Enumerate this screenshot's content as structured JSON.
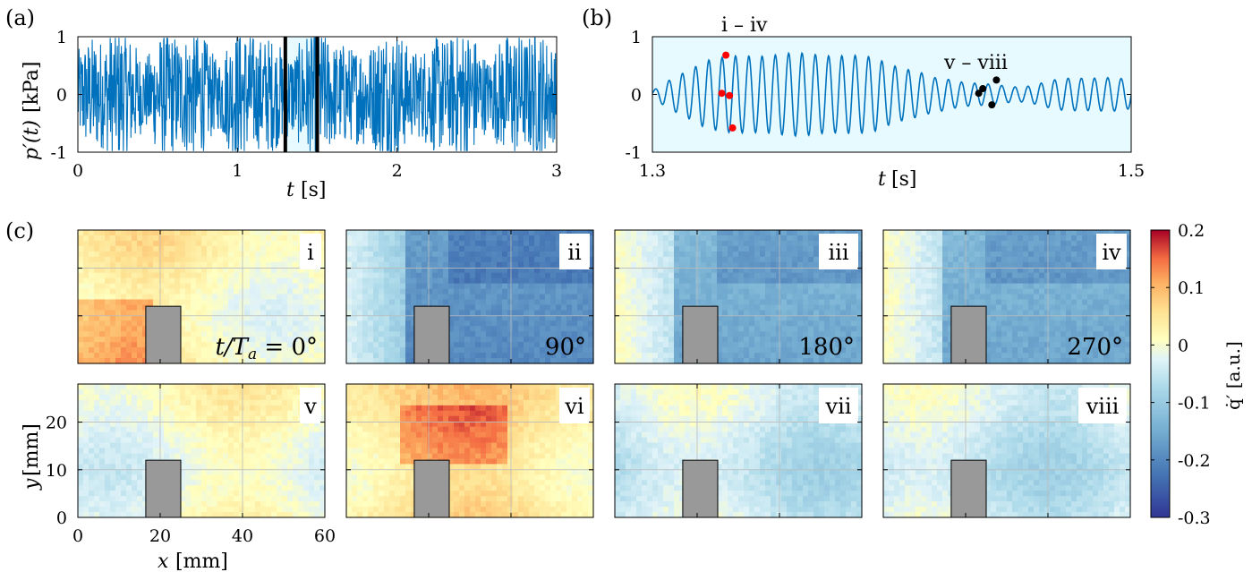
{
  "panel_labels": {
    "a": "(a)",
    "b": "(b)",
    "c": "(c)"
  },
  "chart_data": [
    {
      "id": "a",
      "type": "line",
      "xlabel_var": "t",
      "xlabel_unit": "[s]",
      "ylabel_var": "p′(t)",
      "ylabel_unit": "[kPa]",
      "xlim": [
        0,
        3
      ],
      "ylim": [
        -1,
        1
      ],
      "xticks": [
        "0",
        "1",
        "2",
        "3"
      ],
      "yticks": [
        "-1",
        "0",
        "1"
      ],
      "line_color": "#0072BD",
      "highlight_window": [
        1.3,
        1.5
      ],
      "highlight_color": "#E6FAFF"
    },
    {
      "id": "b",
      "type": "line",
      "xlabel_var": "t",
      "xlabel_unit": "[s]",
      "xlim": [
        1.3,
        1.5
      ],
      "ylim": [
        -1,
        1
      ],
      "xticks": [
        "1.3",
        "1.5"
      ],
      "yticks": [
        "-1",
        "0",
        "1"
      ],
      "background": "#E6FAFF",
      "line_color": "#0072BD",
      "group_labels": [
        "i – iv",
        "v – viii"
      ],
      "markers_red": [
        {
          "x": 1.329,
          "y": 0.02
        },
        {
          "x": 1.3307,
          "y": 0.68
        },
        {
          "x": 1.3322,
          "y": -0.02
        },
        {
          "x": 1.3335,
          "y": -0.58
        }
      ],
      "markers_black": [
        {
          "x": 1.4363,
          "y": 0.02
        },
        {
          "x": 1.438,
          "y": 0.1
        },
        {
          "x": 1.4418,
          "y": -0.18
        },
        {
          "x": 1.4437,
          "y": 0.25
        }
      ]
    },
    {
      "id": "c",
      "type": "heatmap",
      "xlabel_var": "x",
      "xlabel_unit": "[mm]",
      "ylabel_var": "y",
      "ylabel_unit": "[mm]",
      "xlim": [
        0,
        60
      ],
      "ylim": [
        0,
        28
      ],
      "xticks": [
        "0",
        "20",
        "40",
        "60"
      ],
      "yticks": [
        "0",
        "10",
        "20"
      ],
      "colorbar_label": "q̇′ [a.u.]",
      "colorbar_range": [
        -0.3,
        0.2
      ],
      "colorbar_ticks": [
        "0.2",
        "0.1",
        "0",
        "-0.1",
        "-0.2",
        "-0.3"
      ],
      "phase_prefix": "t/T",
      "phase_sub": "a",
      "phase_eq": " = 0°",
      "panels": [
        {
          "label": "i",
          "phase": "0°",
          "mean": 0.02
        },
        {
          "label": "ii",
          "phase": "90°",
          "mean": -0.17
        },
        {
          "label": "iii",
          "phase": "180°",
          "mean": -0.13
        },
        {
          "label": "iv",
          "phase": "270°",
          "mean": -0.13
        },
        {
          "label": "v",
          "phase": "",
          "mean": 0.0
        },
        {
          "label": "vi",
          "phase": "",
          "mean": 0.05
        },
        {
          "label": "vii",
          "phase": "",
          "mean": -0.04
        },
        {
          "label": "viii",
          "phase": "",
          "mean": -0.04
        }
      ]
    }
  ]
}
